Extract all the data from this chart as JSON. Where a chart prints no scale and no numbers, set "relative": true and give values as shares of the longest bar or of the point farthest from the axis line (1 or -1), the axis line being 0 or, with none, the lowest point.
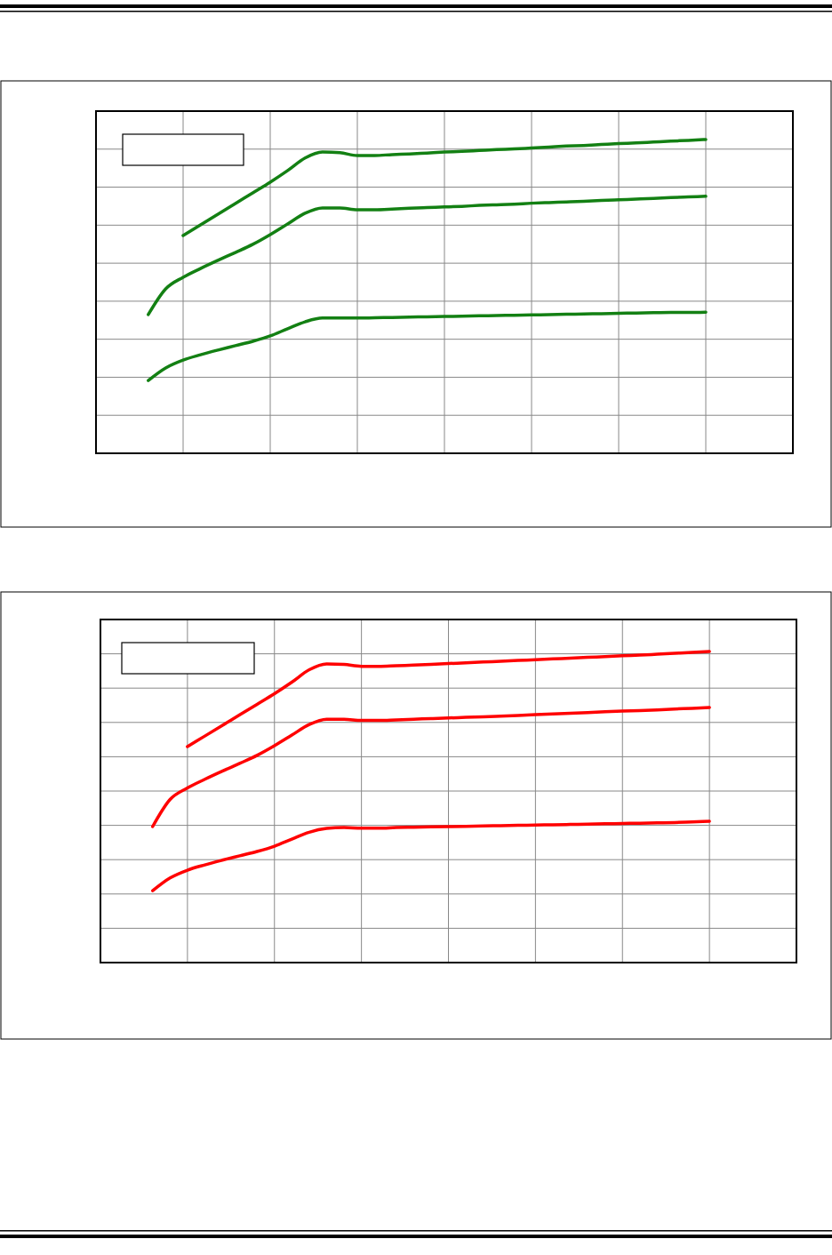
{
  "chart_data": [
    {
      "type": "line",
      "relative": true,
      "grid": true,
      "categories": [
        null,
        null,
        null,
        null,
        null,
        null,
        null,
        null,
        null,
        null,
        null,
        null,
        null,
        null,
        null,
        null,
        null,
        null,
        null,
        null,
        null,
        null,
        null,
        null,
        null,
        null,
        null,
        null,
        null,
        null,
        null,
        null,
        null,
        null,
        null,
        null,
        null,
        null,
        null,
        null,
        null
      ],
      "series": [
        {
          "color": "#138013",
          "values": [
            null,
            null,
            null,
            null,
            null,
            0.694,
            0.728,
            0.762,
            0.796,
            0.83,
            0.864,
            0.901,
            0.941,
            0.96,
            0.958,
            0.949,
            0.949,
            0.952,
            0.954,
            0.957,
            0.96,
            0.962,
            0.965,
            0.968,
            0.97,
            0.973,
            0.976,
            0.979,
            0.981,
            0.984,
            0.987,
            0.989,
            0.992,
            0.995,
            0.997,
            1,
            null,
            null,
            null,
            null,
            null
          ]
        },
        {
          "color": "#138013",
          "values": [
            null,
            null,
            null,
            0.442,
            0.524,
            0.561,
            0.589,
            0.615,
            0.64,
            0.666,
            0.697,
            0.731,
            0.765,
            0.782,
            0.782,
            0.776,
            0.776,
            0.778,
            0.781,
            0.783,
            0.785,
            0.787,
            0.79,
            0.792,
            0.794,
            0.797,
            0.799,
            0.801,
            0.803,
            0.806,
            0.808,
            0.81,
            0.812,
            0.815,
            0.817,
            0.819,
            null,
            null,
            null,
            null,
            null
          ]
        },
        {
          "color": "#138013",
          "values": [
            null,
            null,
            null,
            0.232,
            0.272,
            0.297,
            0.314,
            0.329,
            0.343,
            0.357,
            0.374,
            0.397,
            0.419,
            0.431,
            0.431,
            0.431,
            0.432,
            0.433,
            0.434,
            0.435,
            0.436,
            0.437,
            0.438,
            0.439,
            0.44,
            0.441,
            0.442,
            0.443,
            0.444,
            0.445,
            0.446,
            0.447,
            0.448,
            0.449,
            0.449,
            0.45,
            null,
            null,
            null,
            null,
            null
          ]
        }
      ]
    },
    {
      "type": "line",
      "relative": true,
      "grid": true,
      "categories": [
        null,
        null,
        null,
        null,
        null,
        null,
        null,
        null,
        null,
        null,
        null,
        null,
        null,
        null,
        null,
        null,
        null,
        null,
        null,
        null,
        null,
        null,
        null,
        null,
        null,
        null,
        null,
        null,
        null,
        null,
        null,
        null,
        null,
        null,
        null,
        null,
        null,
        null,
        null,
        null,
        null
      ],
      "series": [
        {
          "color": "#ff0000",
          "values": [
            null,
            null,
            null,
            null,
            null,
            0.694,
            0.728,
            0.762,
            0.796,
            0.83,
            0.864,
            0.901,
            0.941,
            0.96,
            0.958,
            0.952,
            0.952,
            0.954,
            0.956,
            0.958,
            0.961,
            0.963,
            0.966,
            0.968,
            0.971,
            0.973,
            0.976,
            0.978,
            0.981,
            0.983,
            0.986,
            0.988,
            0.991,
            0.994,
            0.997,
            1,
            null,
            null,
            null,
            null,
            null
          ]
        },
        {
          "color": "#ff0000",
          "values": [
            null,
            null,
            null,
            0.437,
            0.524,
            0.561,
            0.589,
            0.615,
            0.64,
            0.666,
            0.697,
            0.731,
            0.765,
            0.782,
            0.782,
            0.778,
            0.778,
            0.78,
            0.782,
            0.784,
            0.786,
            0.788,
            0.79,
            0.792,
            0.794,
            0.797,
            0.799,
            0.801,
            0.803,
            0.806,
            0.808,
            0.81,
            0.812,
            0.815,
            0.817,
            0.82,
            null,
            null,
            null,
            null,
            null
          ]
        },
        {
          "color": "#ff0000",
          "values": [
            null,
            null,
            null,
            0.231,
            0.272,
            0.297,
            0.314,
            0.329,
            0.343,
            0.357,
            0.374,
            0.397,
            0.419,
            0.431,
            0.434,
            0.432,
            0.432,
            0.434,
            0.435,
            0.436,
            0.437,
            0.438,
            0.439,
            0.44,
            0.441,
            0.442,
            0.443,
            0.444,
            0.445,
            0.446,
            0.447,
            0.448,
            0.449,
            0.45,
            0.452,
            0.454,
            null,
            null,
            null,
            null,
            null
          ]
        }
      ]
    }
  ]
}
